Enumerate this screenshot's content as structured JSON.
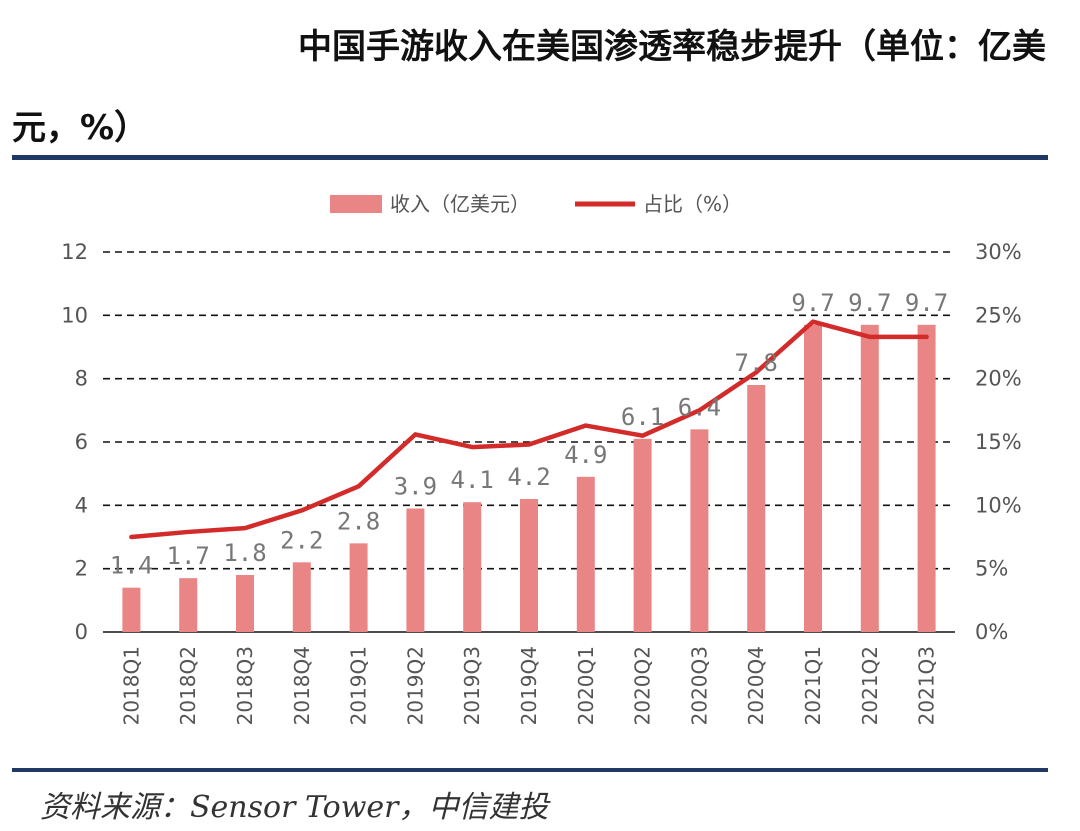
{
  "header": {
    "title_line1": "中国手游收入在美国渗透率稳步提升（单位：亿美",
    "title_line2": "元，%）"
  },
  "footer": {
    "source": "资料来源：Sensor Tower，中信建投"
  },
  "colors": {
    "bar": "#e98585",
    "line": "#d32a2a",
    "rule": "#1f3864",
    "grid": "#111111"
  },
  "chart_data": {
    "type": "bar",
    "categories": [
      "2018Q1",
      "2018Q2",
      "2018Q3",
      "2018Q4",
      "2019Q1",
      "2019Q2",
      "2019Q3",
      "2019Q4",
      "2020Q1",
      "2020Q2",
      "2020Q3",
      "2020Q4",
      "2021Q1",
      "2021Q2",
      "2021Q3"
    ],
    "series": [
      {
        "name": "收入（亿美元）",
        "type": "bar",
        "axis": "left",
        "values": [
          1.4,
          1.7,
          1.8,
          2.2,
          2.8,
          3.9,
          4.1,
          4.2,
          4.9,
          6.1,
          6.4,
          7.8,
          9.7,
          9.7,
          9.7
        ],
        "labels": [
          "1.4",
          "1.7",
          "1.8",
          "2.2",
          "2.8",
          "3.9",
          "4.1",
          "4.2",
          "4.9",
          "6.1",
          "6.4",
          "7.8",
          "9.7",
          "9.7",
          "9.7"
        ]
      },
      {
        "name": "占比（%）",
        "type": "line",
        "axis": "right",
        "values": [
          7.5,
          7.9,
          8.2,
          9.6,
          11.5,
          15.6,
          14.6,
          14.8,
          16.3,
          15.5,
          17.5,
          20.5,
          24.5,
          23.3,
          23.3
        ]
      }
    ],
    "left_axis": {
      "ylim": [
        0,
        12
      ],
      "ticks": [
        "0",
        "2",
        "4",
        "6",
        "8",
        "10",
        "12"
      ]
    },
    "right_axis": {
      "ylim": [
        0,
        30
      ],
      "ticks": [
        "0%",
        "5%",
        "10%",
        "15%",
        "20%",
        "25%",
        "30%"
      ]
    },
    "grid": true,
    "legend_position": "top-center"
  }
}
